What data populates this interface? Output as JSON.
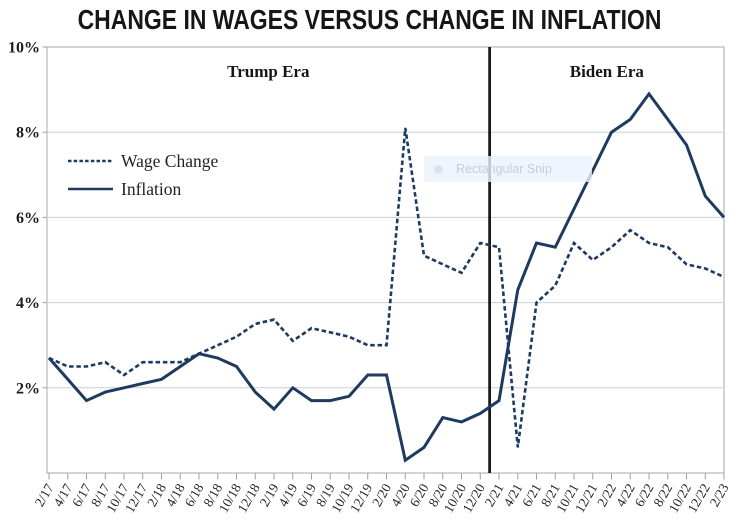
{
  "title": "CHANGE IN WAGES VERSUS CHANGE IN INFLATION",
  "artifact": {
    "label": "Rectangular Snip"
  },
  "colors": {
    "line": "#1e3a5f",
    "grid": "#cbcfd3",
    "frame": "#b4b9be",
    "tick": "#9aa0a6",
    "text": "#272727",
    "divider": "#1a1a1a"
  },
  "chart_data": {
    "type": "line",
    "title": "CHANGE IN WAGES VERSUS CHANGE IN INFLATION",
    "categories": [
      "2/17",
      "4/17",
      "6/17",
      "8/17",
      "10/17",
      "12/17",
      "2/18",
      "4/18",
      "6/18",
      "8/18",
      "10/18",
      "12/18",
      "2/19",
      "4/19",
      "6/19",
      "8/19",
      "10/19",
      "12/19",
      "2/20",
      "4/20",
      "6/20",
      "8/20",
      "10/20",
      "12/20",
      "2/21",
      "4/21",
      "6/21",
      "8/21",
      "10/21",
      "12/21",
      "2/22",
      "4/22",
      "6/22",
      "8/22",
      "10/22",
      "12/22",
      "2/23"
    ],
    "series": [
      {
        "name": "Wage Change",
        "style": "dashed",
        "color": "#1e3a5f",
        "values": [
          2.7,
          2.5,
          2.5,
          2.6,
          2.3,
          2.6,
          2.6,
          2.6,
          2.8,
          3.0,
          3.2,
          3.5,
          3.6,
          3.1,
          3.4,
          3.3,
          3.2,
          3.0,
          3.0,
          8.1,
          5.1,
          4.9,
          4.7,
          5.4,
          5.3,
          0.6,
          4.0,
          4.4,
          5.4,
          5.0,
          5.3,
          5.7,
          5.4,
          5.3,
          4.9,
          4.8,
          4.6
        ]
      },
      {
        "name": "Inflation",
        "style": "solid",
        "color": "#1e3a5f",
        "values": [
          2.7,
          2.2,
          1.7,
          1.9,
          2.0,
          2.1,
          2.2,
          2.5,
          2.8,
          2.7,
          2.5,
          1.9,
          1.5,
          2.0,
          1.7,
          1.7,
          1.8,
          2.3,
          2.3,
          0.3,
          0.6,
          1.3,
          1.2,
          1.4,
          1.7,
          4.3,
          5.4,
          5.3,
          6.2,
          7.1,
          8.0,
          8.3,
          8.9,
          8.3,
          7.7,
          6.5,
          6.0
        ]
      }
    ],
    "xlabel": "",
    "ylabel": "",
    "ylim": [
      0,
      10
    ],
    "y_ticks": [
      {
        "value": 10,
        "label": "10%"
      },
      {
        "value": 8,
        "label": "8%"
      },
      {
        "value": 6,
        "label": "6%"
      },
      {
        "value": 4,
        "label": "4%"
      },
      {
        "value": 2,
        "label": "2%"
      }
    ],
    "grid": true,
    "legend": {
      "position": "upper-left",
      "entries": [
        "Wage Change",
        "Inflation"
      ]
    },
    "annotations": {
      "left_region_label": "Trump Era",
      "right_region_label": "Biden Era",
      "divider_between": [
        "12/20",
        "2/21"
      ]
    }
  }
}
